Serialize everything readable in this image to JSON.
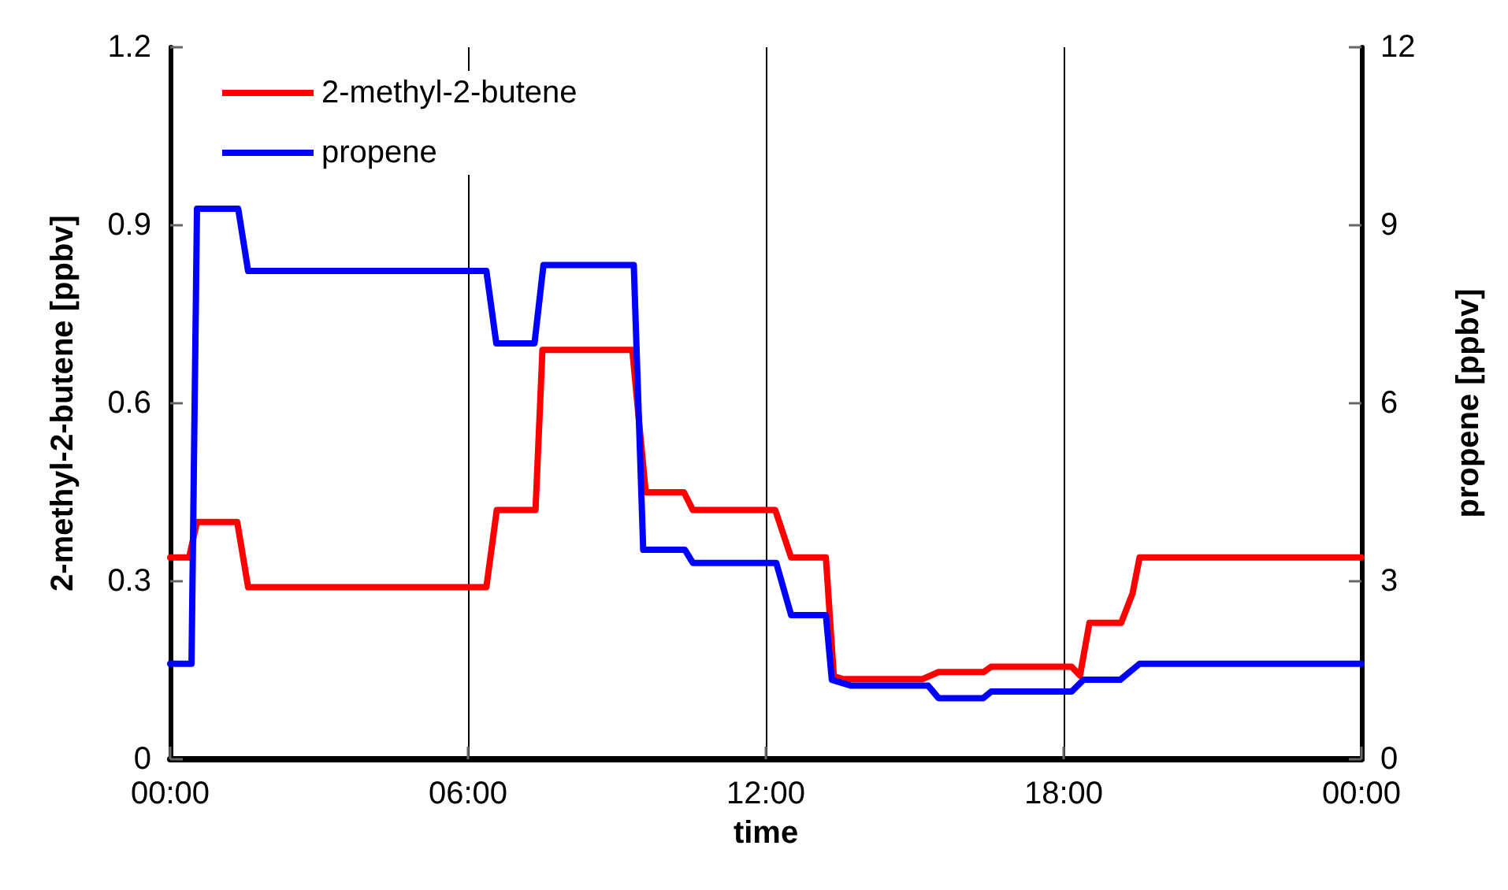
{
  "chart_data": {
    "type": "line",
    "xlabel": "time",
    "ylabel": "2-methyl-2-butene [ppbv]",
    "y2label": "propene [ppbv]",
    "xlim": [
      0,
      24
    ],
    "xticks": [
      {
        "value": 0,
        "label": "00:00"
      },
      {
        "value": 6,
        "label": "06:00"
      },
      {
        "value": 12,
        "label": "12:00"
      },
      {
        "value": 18,
        "label": "18:00"
      },
      {
        "value": 24,
        "label": "00:00"
      }
    ],
    "ylim": [
      0,
      1.2
    ],
    "yticks": [
      0,
      0.3,
      0.6,
      0.9,
      1.2
    ],
    "y2lim": [
      0,
      12
    ],
    "y2ticks": [
      0,
      3,
      6,
      9,
      12
    ],
    "grid": "x",
    "legend": "top left",
    "marker": "none",
    "line_style": "solid",
    "series": [
      {
        "name": "2-methyl-2-butene",
        "color": "#ff0000",
        "x": [
          0,
          0.38,
          0.54,
          1.35,
          1.57,
          6.37,
          6.58,
          7.36,
          7.5,
          9.31,
          9.58,
          10.35,
          10.53,
          12.19,
          12.51,
          13.21,
          13.37,
          13.56,
          15.15,
          15.48,
          16.39,
          16.54,
          18.16,
          18.33,
          18.52,
          19.16,
          19.39,
          19.53,
          24
        ],
        "values": [
          0.34,
          0.34,
          0.4,
          0.4,
          0.29,
          0.29,
          0.42,
          0.42,
          0.69,
          0.69,
          0.45,
          0.45,
          0.42,
          0.42,
          0.34,
          0.34,
          0.14,
          0.135,
          0.135,
          0.147,
          0.147,
          0.156,
          0.156,
          0.141,
          0.23,
          0.23,
          0.28,
          0.34,
          0.34
        ]
      },
      {
        "name": "propene",
        "color": "#0000ff",
        "axis": "y2",
        "x": [
          0,
          0.43,
          0.54,
          1.37,
          1.57,
          6.37,
          6.57,
          7.34,
          7.52,
          9.34,
          9.53,
          10.37,
          10.53,
          12.21,
          12.51,
          13.21,
          13.33,
          13.72,
          15.27,
          15.48,
          16.38,
          16.54,
          18.16,
          18.4,
          19.14,
          19.53,
          24
        ],
        "values": [
          1.61,
          1.61,
          9.28,
          9.28,
          8.23,
          8.23,
          7.01,
          7.01,
          8.33,
          8.33,
          3.53,
          3.53,
          3.31,
          3.31,
          2.43,
          2.43,
          1.34,
          1.24,
          1.24,
          1.03,
          1.03,
          1.14,
          1.14,
          1.34,
          1.34,
          1.61,
          1.61
        ]
      }
    ]
  }
}
